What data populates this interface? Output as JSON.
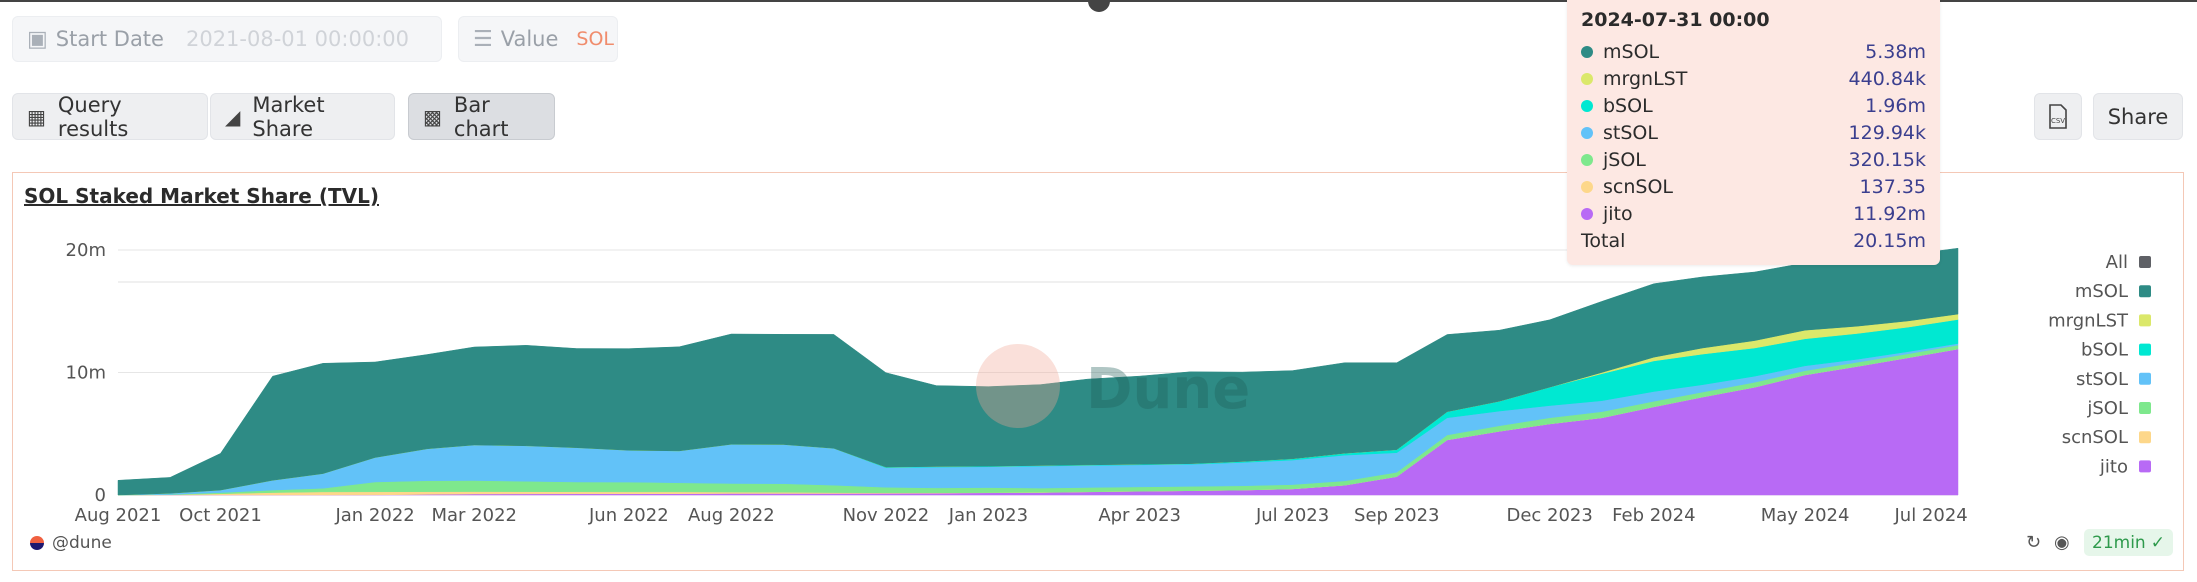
{
  "params": {
    "start_date": {
      "label": "Start Date",
      "value": "2021-08-01 00:00:00"
    },
    "value": {
      "label": "Value",
      "value": "SOL"
    }
  },
  "tabs": [
    {
      "label": "Query results",
      "icon": "table-icon"
    },
    {
      "label": "Market Share",
      "icon": "area-chart-icon"
    },
    {
      "label": "Bar chart",
      "icon": "bar-chart-icon"
    }
  ],
  "actions": {
    "csv_icon": "csv-download-icon",
    "share_label": "Share"
  },
  "chart_data": {
    "type": "area",
    "title": "SOL Staked Market Share (TVL)",
    "x": [
      "2021-08-01",
      "2021-09-01",
      "2021-10-01",
      "2021-11-01",
      "2021-12-01",
      "2022-01-01",
      "2022-02-01",
      "2022-03-01",
      "2022-04-01",
      "2022-05-01",
      "2022-06-01",
      "2022-07-01",
      "2022-08-01",
      "2022-09-01",
      "2022-10-01",
      "2022-11-01",
      "2022-12-01",
      "2023-01-01",
      "2023-02-01",
      "2023-03-01",
      "2023-04-01",
      "2023-05-01",
      "2023-06-01",
      "2023-07-01",
      "2023-08-01",
      "2023-09-01",
      "2023-10-01",
      "2023-11-01",
      "2023-12-01",
      "2024-01-01",
      "2024-02-01",
      "2024-03-01",
      "2024-04-01",
      "2024-05-01",
      "2024-06-01",
      "2024-07-01",
      "2024-07-31"
    ],
    "series": [
      {
        "name": "jito",
        "color": "#b86af5",
        "values": [
          0,
          0,
          0,
          0,
          0,
          0.01,
          0.05,
          0.08,
          0.09,
          0.1,
          0.1,
          0.11,
          0.12,
          0.12,
          0.12,
          0.13,
          0.15,
          0.18,
          0.2,
          0.25,
          0.3,
          0.35,
          0.4,
          0.5,
          0.8,
          1.5,
          4.5,
          5.2,
          5.8,
          6.3,
          7.2,
          8.0,
          8.8,
          9.8,
          10.5,
          11.2,
          11.92
        ]
      },
      {
        "name": "scnSOL",
        "color": "#fdd78a",
        "values": [
          0,
          0.02,
          0.1,
          0.2,
          0.25,
          0.25,
          0.22,
          0.2,
          0.18,
          0.16,
          0.15,
          0.14,
          0.12,
          0.1,
          0.08,
          0.05,
          0.03,
          0.02,
          0.01,
          0.01,
          0.01,
          0.005,
          0.003,
          0.002,
          0.001,
          0.001,
          0.001,
          0.001,
          0.001,
          0.001,
          0.001,
          0.0005,
          0.0003,
          0.0002,
          0.0002,
          0.00015,
          0.00014
        ]
      },
      {
        "name": "jSOL",
        "color": "#7ee88d",
        "values": [
          0,
          0.02,
          0.1,
          0.2,
          0.3,
          0.8,
          0.9,
          0.9,
          0.85,
          0.8,
          0.8,
          0.75,
          0.7,
          0.7,
          0.6,
          0.45,
          0.4,
          0.4,
          0.35,
          0.35,
          0.35,
          0.35,
          0.35,
          0.35,
          0.35,
          0.35,
          0.4,
          0.45,
          0.5,
          0.5,
          0.45,
          0.4,
          0.4,
          0.35,
          0.33,
          0.32,
          0.32
        ]
      },
      {
        "name": "stSOL",
        "color": "#62c2f8",
        "values": [
          0,
          0.1,
          0.2,
          0.8,
          1.2,
          2.0,
          2.6,
          2.9,
          2.9,
          2.8,
          2.6,
          2.6,
          3.2,
          3.2,
          3.0,
          1.6,
          1.7,
          1.7,
          1.8,
          1.8,
          1.8,
          1.8,
          1.9,
          2.0,
          2.1,
          1.6,
          1.4,
          1.2,
          1.0,
          0.9,
          0.8,
          0.6,
          0.5,
          0.4,
          0.25,
          0.18,
          0.13
        ]
      },
      {
        "name": "bSOL",
        "color": "#00e8d2",
        "values": [
          0,
          0,
          0,
          0,
          0,
          0,
          0,
          0,
          0,
          0,
          0,
          0,
          0,
          0,
          0.01,
          0.05,
          0.05,
          0.05,
          0.05,
          0.05,
          0.05,
          0.05,
          0.08,
          0.1,
          0.15,
          0.25,
          0.5,
          0.8,
          1.5,
          2.2,
          2.5,
          2.5,
          2.3,
          2.2,
          2.1,
          2.0,
          1.96
        ]
      },
      {
        "name": "mrgnLST",
        "color": "#dbe86a",
        "values": [
          0,
          0,
          0,
          0,
          0,
          0,
          0,
          0,
          0,
          0,
          0,
          0,
          0,
          0,
          0,
          0,
          0,
          0,
          0,
          0,
          0,
          0,
          0,
          0,
          0,
          0,
          0,
          0,
          0,
          0.1,
          0.3,
          0.5,
          0.6,
          0.7,
          0.6,
          0.5,
          0.44
        ]
      },
      {
        "name": "mSOL",
        "color": "#2e8b85",
        "values": [
          1.2,
          1.3,
          3.0,
          8.5,
          9.0,
          7.8,
          7.7,
          8.0,
          8.2,
          8.1,
          8.3,
          8.5,
          9.0,
          9.0,
          9.3,
          7.7,
          6.6,
          6.5,
          6.6,
          7.0,
          7.2,
          7.5,
          7.3,
          7.2,
          7.4,
          7.1,
          6.3,
          5.8,
          5.5,
          5.8,
          6.0,
          5.8,
          5.6,
          5.5,
          5.5,
          5.4,
          5.38
        ]
      }
    ],
    "all_total": {
      "name": "All",
      "color": "#5f6166"
    },
    "y_ticks": [
      "0",
      "10m",
      "20m"
    ],
    "ylim": [
      0,
      20000000
    ],
    "x_ticks": [
      "Aug 2021",
      "Oct 2021",
      "Jan 2022",
      "Mar 2022",
      "Jun 2022",
      "Aug 2022",
      "Nov 2022",
      "Jan 2023",
      "Apr 2023",
      "Jul 2023",
      "Sep 2023",
      "Dec 2023",
      "Feb 2024",
      "May 2024",
      "Jul 2024"
    ],
    "legend_order": [
      "All",
      "mSOL",
      "mrgnLST",
      "bSOL",
      "stSOL",
      "jSOL",
      "scnSOL",
      "jito"
    ],
    "legend_position": "right",
    "grid": true,
    "watermark": "Dune"
  },
  "tooltip": {
    "date": "2024-07-31 00:00",
    "rows": [
      {
        "name": "mSOL",
        "value": "5.38m",
        "color": "#2e8b85"
      },
      {
        "name": "mrgnLST",
        "value": "440.84k",
        "color": "#dbe86a"
      },
      {
        "name": "bSOL",
        "value": "1.96m",
        "color": "#00e8d2"
      },
      {
        "name": "stSOL",
        "value": "129.94k",
        "color": "#62c2f8"
      },
      {
        "name": "jSOL",
        "value": "320.15k",
        "color": "#7ee88d"
      },
      {
        "name": "scnSOL",
        "value": "137.35",
        "color": "#fdd78a"
      },
      {
        "name": "jito",
        "value": "11.92m",
        "color": "#b86af5"
      }
    ],
    "total_label": "Total",
    "total_value": "20.15m"
  },
  "footer": {
    "brand": "@dune",
    "age": "21min",
    "icons": [
      "refresh-icon",
      "camera-icon",
      "check-circle-icon"
    ]
  }
}
